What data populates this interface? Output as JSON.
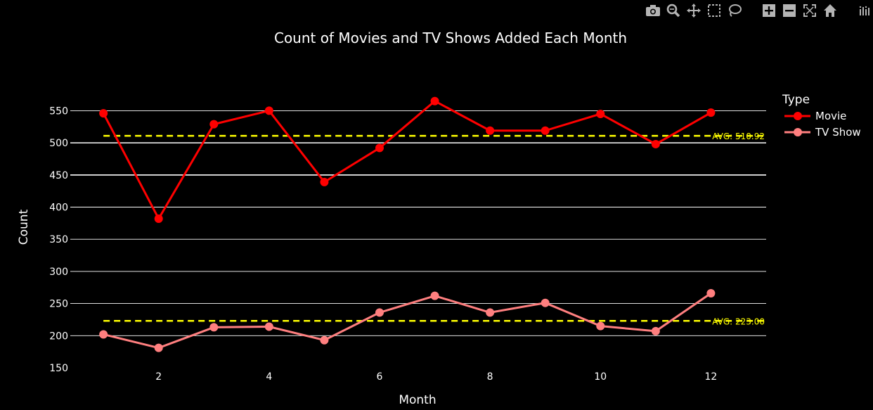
{
  "colors": {
    "background": "#000000",
    "grid": "#ffffff",
    "avg_line": "#ffff00",
    "movie": "#ff0000",
    "tv_show": "#ff7f7f",
    "modebar_icon": "#b4b4b4"
  },
  "modebar": {
    "icons": [
      "camera-icon",
      "zoom-icon",
      "pan-icon",
      "box-select-icon",
      "lasso-select-icon",
      "zoom-in-icon",
      "zoom-out-icon",
      "autoscale-icon",
      "reset-axes-icon",
      "plotly-logo-icon"
    ]
  },
  "chart_data": {
    "type": "line",
    "title": "Count of Movies and TV Shows Added Each Month",
    "xlabel": "Month",
    "ylabel": "Count",
    "x": [
      1,
      2,
      3,
      4,
      5,
      6,
      7,
      8,
      9,
      10,
      11,
      12
    ],
    "xlim": [
      0.4,
      13.0
    ],
    "ylim": [
      150,
      580
    ],
    "xticks": [
      2,
      4,
      6,
      8,
      10,
      12
    ],
    "yticks": [
      150,
      200,
      250,
      300,
      350,
      400,
      450,
      500,
      550
    ],
    "grid": true,
    "legend": {
      "title": "Type",
      "position": "top-right"
    },
    "series": [
      {
        "name": "Movie",
        "color": "#ff0000",
        "values": [
          546,
          382,
          529,
          550,
          439,
          492,
          565,
          519,
          519,
          545,
          498,
          547
        ]
      },
      {
        "name": "TV Show",
        "color": "#ff7f7f",
        "values": [
          202,
          181,
          213,
          214,
          193,
          236,
          262,
          236,
          251,
          215,
          207,
          266
        ]
      }
    ],
    "annotations": [
      {
        "type": "hline",
        "y": 510.92,
        "label": "AVG: 510.92",
        "color": "#ffff00",
        "style": "dashed"
      },
      {
        "type": "hline",
        "y": 223.0,
        "label": "AVG: 223.00",
        "color": "#ffff00",
        "style": "dashed"
      }
    ]
  }
}
